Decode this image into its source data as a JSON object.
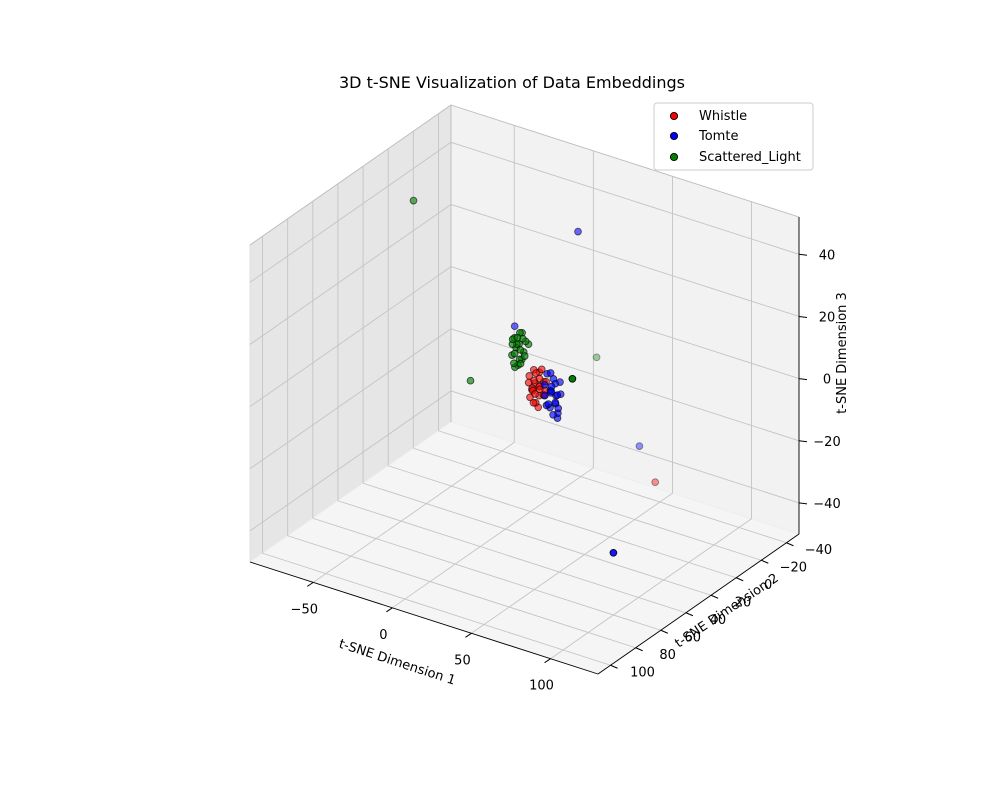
{
  "chart_data": {
    "type": "scatter",
    "projection": "3d",
    "title": "3D t-SNE Visualization of Data Embeddings",
    "xlabel": "t-SNE Dimension 1",
    "ylabel": "t-SNE Dimension 2",
    "zlabel": "t-SNE Dimension 3",
    "xlim": [
      -90,
      130
    ],
    "ylim": [
      -50,
      110
    ],
    "zlim": [
      -50,
      52
    ],
    "xticks": [
      -50,
      0,
      50,
      100
    ],
    "yticks": [
      -40,
      -20,
      0,
      20,
      40,
      60,
      80,
      100
    ],
    "zticks": [
      -40,
      -20,
      0,
      20,
      40
    ],
    "grid": true,
    "legend_position": "upper right",
    "series": [
      {
        "name": "Whistle",
        "color": "#ff0000",
        "points": [
          [
            5,
            5,
            -8
          ],
          [
            7,
            6,
            -5
          ],
          [
            9,
            4,
            -7
          ],
          [
            11,
            7,
            -6
          ],
          [
            6,
            8,
            -10
          ],
          [
            8,
            3,
            -3
          ],
          [
            12,
            5,
            -9
          ],
          [
            4,
            6,
            -4
          ],
          [
            10,
            9,
            -8
          ],
          [
            13,
            4,
            -5
          ],
          [
            7,
            2,
            -11
          ],
          [
            9,
            7,
            -2
          ],
          [
            5,
            3,
            -7
          ],
          [
            11,
            3,
            -10
          ],
          [
            6,
            9,
            -5
          ],
          [
            8,
            6,
            -12
          ],
          [
            12,
            8,
            -3
          ],
          [
            10,
            2,
            -6
          ],
          [
            4,
            4,
            -9
          ],
          [
            14,
            6,
            -7
          ],
          [
            6,
            5,
            -2
          ],
          [
            9,
            9,
            -11
          ],
          [
            11,
            5,
            -1
          ],
          [
            8,
            4,
            -14
          ],
          [
            13,
            9,
            -6
          ],
          [
            7,
            7,
            -8
          ],
          [
            55,
            -30,
            -40
          ]
        ]
      },
      {
        "name": "Tomte",
        "color": "#0000ff",
        "points": [
          [
            22,
            12,
            -4
          ],
          [
            24,
            10,
            -6
          ],
          [
            20,
            14,
            -2
          ],
          [
            26,
            13,
            -7
          ],
          [
            23,
            9,
            -9
          ],
          [
            25,
            15,
            -3
          ],
          [
            21,
            11,
            -10
          ],
          [
            27,
            10,
            -5
          ],
          [
            22,
            15,
            -8
          ],
          [
            24,
            12,
            0
          ],
          [
            28,
            14,
            -4
          ],
          [
            20,
            9,
            -6
          ],
          [
            26,
            11,
            -11
          ],
          [
            23,
            13,
            2
          ],
          [
            25,
            8,
            -2
          ],
          [
            21,
            15,
            -5
          ],
          [
            27,
            12,
            -9
          ],
          [
            24,
            16,
            -7
          ],
          [
            22,
            8,
            -3
          ],
          [
            26,
            16,
            -1
          ],
          [
            25,
            10,
            -13
          ],
          [
            23,
            11,
            -12
          ],
          [
            20,
            12,
            1
          ],
          [
            -10,
            0,
            8
          ],
          [
            30,
            0,
            45
          ],
          [
            45,
            -30,
            -30
          ],
          [
            100,
            60,
            -30
          ]
        ]
      },
      {
        "name": "Scattered_Light",
        "color": "#008000",
        "points": [
          [
            2,
            14,
            7
          ],
          [
            4,
            16,
            9
          ],
          [
            6,
            13,
            6
          ],
          [
            3,
            18,
            11
          ],
          [
            5,
            15,
            4
          ],
          [
            7,
            17,
            8
          ],
          [
            1,
            16,
            5
          ],
          [
            8,
            14,
            10
          ],
          [
            4,
            12,
            3
          ],
          [
            6,
            18,
            12
          ],
          [
            2,
            17,
            9
          ],
          [
            9,
            16,
            6
          ],
          [
            3,
            13,
            8
          ],
          [
            5,
            19,
            7
          ],
          [
            7,
            15,
            11
          ],
          [
            1,
            14,
            10
          ],
          [
            8,
            18,
            4
          ],
          [
            4,
            15,
            2
          ],
          [
            6,
            16,
            13
          ],
          [
            3,
            17,
            3
          ],
          [
            9,
            13,
            9
          ],
          [
            5,
            13,
            12
          ],
          [
            2,
            15,
            1
          ],
          [
            -30,
            10,
            -10
          ],
          [
            -70,
            5,
            40
          ],
          [
            90,
            80,
            30
          ],
          [
            10,
            -40,
            -10
          ]
        ]
      }
    ]
  }
}
